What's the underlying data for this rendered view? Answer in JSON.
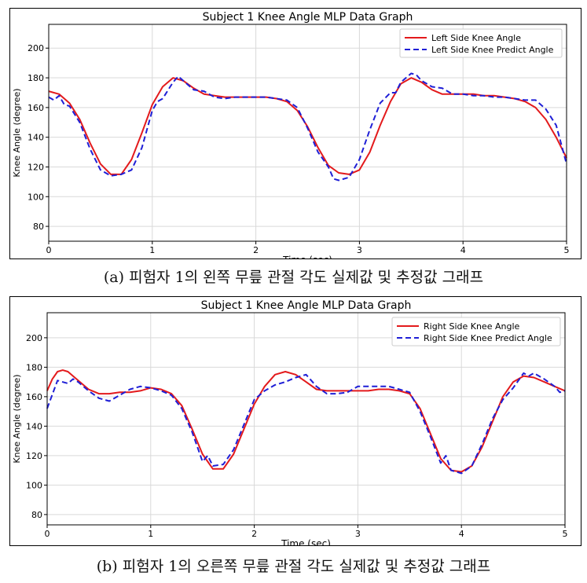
{
  "colors": {
    "actual": "#e31a1c",
    "predict": "#1f1fd6",
    "grid": "#d9d9d9",
    "frame": "#000000"
  },
  "chart_data": [
    {
      "type": "line",
      "title": "Subject 1 Knee Angle MLP Data Graph",
      "xlabel": "Time (sec)",
      "ylabel": "Knee Angle (degree)",
      "xlim": [
        0,
        5
      ],
      "ylim": [
        70,
        216
      ],
      "xticks": [
        "0",
        "1",
        "2",
        "3",
        "4",
        "5"
      ],
      "yticks": [
        "80",
        "100",
        "120",
        "140",
        "160",
        "180",
        "200"
      ],
      "grid": true,
      "legend_position": "top-right",
      "caption": "(a) 피험자 1의 왼쪽 무릎 관절 각도 실제값 및 추정값 그래프",
      "series": [
        {
          "name": "Left Side Knee Angle",
          "style": "solid",
          "x": [
            0,
            0.1,
            0.2,
            0.3,
            0.4,
            0.5,
            0.6,
            0.7,
            0.8,
            0.9,
            1.0,
            1.1,
            1.2,
            1.3,
            1.4,
            1.5,
            1.6,
            1.7,
            1.8,
            1.9,
            2.0,
            2.1,
            2.2,
            2.3,
            2.4,
            2.5,
            2.6,
            2.7,
            2.8,
            2.9,
            3.0,
            3.1,
            3.2,
            3.3,
            3.4,
            3.5,
            3.6,
            3.7,
            3.8,
            3.9,
            4.0,
            4.1,
            4.2,
            4.3,
            4.4,
            4.5,
            4.6,
            4.7,
            4.8,
            4.9,
            5.0
          ],
          "y": [
            171,
            169,
            163,
            152,
            136,
            122,
            115,
            115,
            125,
            143,
            162,
            174,
            180,
            178,
            173,
            169,
            168,
            167,
            167,
            167,
            167,
            167,
            166,
            164,
            158,
            147,
            133,
            121,
            116,
            115,
            118,
            130,
            148,
            164,
            176,
            180,
            177,
            172,
            169,
            169,
            169,
            169,
            168,
            168,
            167,
            166,
            164,
            160,
            152,
            140,
            126
          ]
        },
        {
          "name": "Left Side Knee Predict Angle",
          "style": "dashed",
          "x": [
            0,
            0.05,
            0.1,
            0.15,
            0.2,
            0.3,
            0.4,
            0.5,
            0.6,
            0.7,
            0.8,
            0.9,
            1.0,
            1.05,
            1.1,
            1.2,
            1.25,
            1.3,
            1.4,
            1.5,
            1.6,
            1.7,
            1.8,
            1.9,
            2.0,
            2.1,
            2.2,
            2.3,
            2.4,
            2.5,
            2.6,
            2.7,
            2.75,
            2.8,
            2.9,
            3.0,
            3.1,
            3.2,
            3.3,
            3.35,
            3.4,
            3.5,
            3.55,
            3.6,
            3.7,
            3.8,
            3.9,
            4.0,
            4.1,
            4.2,
            4.3,
            4.4,
            4.5,
            4.6,
            4.7,
            4.8,
            4.9,
            5.0
          ],
          "y": [
            167,
            165,
            168,
            162,
            161,
            150,
            132,
            118,
            114,
            115,
            118,
            133,
            158,
            164,
            166,
            177,
            181,
            178,
            172,
            171,
            167,
            166,
            167,
            167,
            167,
            167,
            166,
            165,
            160,
            146,
            130,
            120,
            112,
            111,
            113,
            125,
            145,
            163,
            170,
            170,
            177,
            183,
            182,
            178,
            174,
            173,
            169,
            169,
            168,
            168,
            167,
            167,
            166,
            165,
            165,
            159,
            148,
            122
          ]
        }
      ]
    },
    {
      "type": "line",
      "title": "Subject 1 Knee Angle MLP Data Graph",
      "xlabel": "Time (sec)",
      "ylabel": "Knee Angle (degree)",
      "xlim": [
        0,
        5
      ],
      "ylim": [
        73,
        217
      ],
      "xticks": [
        "0",
        "1",
        "2",
        "3",
        "4",
        "5"
      ],
      "yticks": [
        "80",
        "100",
        "120",
        "140",
        "160",
        "180",
        "200"
      ],
      "grid": true,
      "legend_position": "top-right",
      "caption": "(b) 피험자 1의 오른쪽 무릎 관절 각도 실제값 및 추정값 그래프",
      "series": [
        {
          "name": "Right Side Knee Angle",
          "style": "solid",
          "x": [
            0,
            0.05,
            0.1,
            0.15,
            0.2,
            0.3,
            0.4,
            0.5,
            0.6,
            0.7,
            0.8,
            0.9,
            1.0,
            1.1,
            1.2,
            1.3,
            1.4,
            1.5,
            1.6,
            1.7,
            1.8,
            1.9,
            2.0,
            2.1,
            2.2,
            2.3,
            2.4,
            2.5,
            2.6,
            2.7,
            2.8,
            2.9,
            3.0,
            3.1,
            3.2,
            3.3,
            3.4,
            3.5,
            3.6,
            3.7,
            3.8,
            3.9,
            4.0,
            4.1,
            4.2,
            4.3,
            4.4,
            4.5,
            4.6,
            4.7,
            4.8,
            4.9,
            5.0
          ],
          "y": [
            164,
            172,
            177,
            178,
            177,
            171,
            165,
            162,
            162,
            163,
            163,
            164,
            166,
            165,
            162,
            154,
            138,
            121,
            111,
            111,
            121,
            138,
            155,
            167,
            175,
            177,
            175,
            170,
            165,
            164,
            164,
            164,
            164,
            164,
            165,
            165,
            164,
            162,
            152,
            135,
            118,
            110,
            109,
            113,
            126,
            143,
            160,
            170,
            174,
            173,
            170,
            167,
            164
          ]
        },
        {
          "name": "Right Side Knee Predict Angle",
          "style": "dashed",
          "x": [
            0,
            0.1,
            0.2,
            0.25,
            0.3,
            0.4,
            0.5,
            0.6,
            0.7,
            0.8,
            0.9,
            1.0,
            1.1,
            1.2,
            1.3,
            1.4,
            1.5,
            1.55,
            1.6,
            1.7,
            1.8,
            1.9,
            2.0,
            2.1,
            2.2,
            2.3,
            2.4,
            2.5,
            2.6,
            2.7,
            2.8,
            2.9,
            3.0,
            3.1,
            3.2,
            3.3,
            3.4,
            3.5,
            3.6,
            3.7,
            3.8,
            3.85,
            3.9,
            4.0,
            4.1,
            4.2,
            4.3,
            4.4,
            4.5,
            4.6,
            4.65,
            4.7,
            4.8,
            4.9,
            4.95,
            5.0
          ],
          "y": [
            152,
            171,
            169,
            172,
            170,
            164,
            159,
            157,
            161,
            165,
            167,
            166,
            164,
            161,
            152,
            136,
            116,
            120,
            113,
            114,
            124,
            141,
            158,
            164,
            168,
            170,
            173,
            175,
            167,
            162,
            162,
            163,
            167,
            167,
            167,
            167,
            165,
            163,
            150,
            133,
            115,
            120,
            110,
            108,
            113,
            128,
            145,
            158,
            166,
            176,
            174,
            176,
            172,
            167,
            163,
            164
          ]
        }
      ]
    }
  ]
}
